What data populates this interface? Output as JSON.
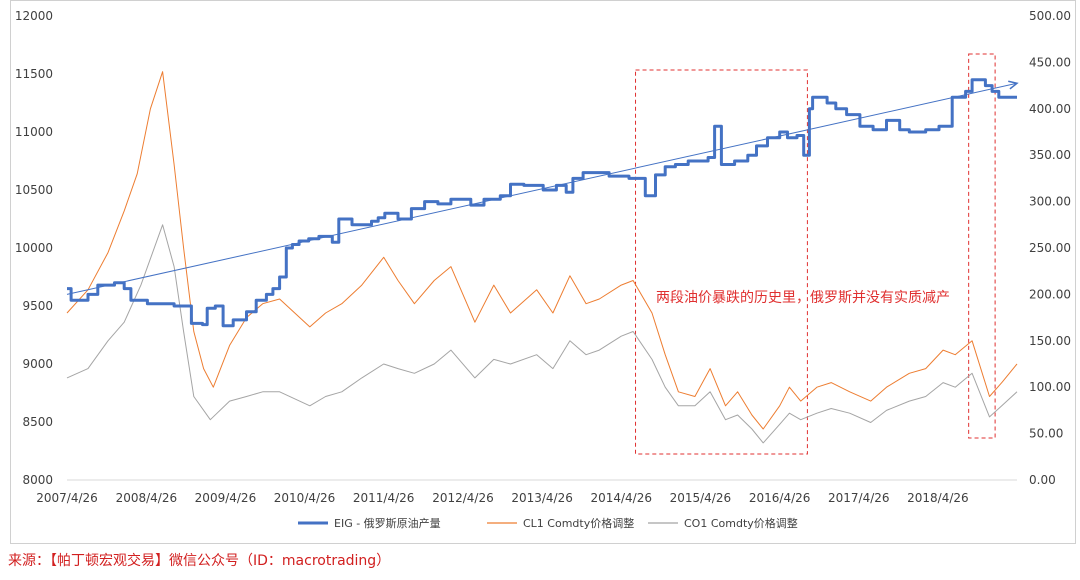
{
  "chart_data": {
    "type": "line",
    "y_left": {
      "min": 8000,
      "max": 12000,
      "ticks": [
        8000,
        8500,
        9000,
        9500,
        10000,
        10500,
        11000,
        11500,
        12000
      ]
    },
    "y_right": {
      "min": 0,
      "max": 500,
      "ticks": [
        "0.00",
        "50.00",
        "100.00",
        "150.00",
        "200.00",
        "250.00",
        "300.00",
        "350.00",
        "400.00",
        "450.00",
        "500.00"
      ]
    },
    "x_range": [
      "2007-04-26",
      "2019-04-26"
    ],
    "x_ticks": [
      "2007/4/26",
      "2008/4/26",
      "2009/4/26",
      "2010/4/26",
      "2011/4/26",
      "2012/4/26",
      "2013/4/26",
      "2014/4/26",
      "2015/4/26",
      "2016/4/26",
      "2017/4/26",
      "2018/4/26"
    ],
    "legend_position": "bottom",
    "series": [
      {
        "name": "EIG - 俄罗斯原油产量",
        "axis": "left",
        "color": "#4472c4",
        "step": true,
        "points": [
          [
            "2007-04-26",
            9650
          ],
          [
            "2007-05-15",
            9550
          ],
          [
            "2007-08-01",
            9600
          ],
          [
            "2007-09-15",
            9680
          ],
          [
            "2007-12-01",
            9700
          ],
          [
            "2008-01-15",
            9650
          ],
          [
            "2008-02-15",
            9550
          ],
          [
            "2008-05-01",
            9520
          ],
          [
            "2008-09-01",
            9500
          ],
          [
            "2008-11-20",
            9350
          ],
          [
            "2009-01-10",
            9340
          ],
          [
            "2009-02-01",
            9480
          ],
          [
            "2009-03-10",
            9500
          ],
          [
            "2009-04-15",
            9330
          ],
          [
            "2009-06-01",
            9380
          ],
          [
            "2009-08-01",
            9450
          ],
          [
            "2009-09-15",
            9550
          ],
          [
            "2009-11-01",
            9600
          ],
          [
            "2009-12-01",
            9650
          ],
          [
            "2010-01-01",
            9750
          ],
          [
            "2010-02-01",
            10000
          ],
          [
            "2010-03-01",
            10030
          ],
          [
            "2010-04-01",
            10060
          ],
          [
            "2010-05-15",
            10080
          ],
          [
            "2010-07-01",
            10100
          ],
          [
            "2010-09-01",
            10050
          ],
          [
            "2010-10-01",
            10250
          ],
          [
            "2010-12-01",
            10200
          ],
          [
            "2011-01-15",
            10200
          ],
          [
            "2011-03-01",
            10230
          ],
          [
            "2011-04-01",
            10260
          ],
          [
            "2011-05-01",
            10300
          ],
          [
            "2011-07-01",
            10250
          ],
          [
            "2011-09-01",
            10340
          ],
          [
            "2011-11-01",
            10400
          ],
          [
            "2012-01-01",
            10380
          ],
          [
            "2012-03-01",
            10420
          ],
          [
            "2012-06-01",
            10370
          ],
          [
            "2012-08-01",
            10420
          ],
          [
            "2012-10-15",
            10450
          ],
          [
            "2012-12-01",
            10550
          ],
          [
            "2013-02-01",
            10540
          ],
          [
            "2013-05-01",
            10500
          ],
          [
            "2013-07-01",
            10540
          ],
          [
            "2013-08-15",
            10480
          ],
          [
            "2013-09-15",
            10600
          ],
          [
            "2013-11-01",
            10650
          ],
          [
            "2014-01-01",
            10650
          ],
          [
            "2014-03-01",
            10620
          ],
          [
            "2014-06-01",
            10600
          ],
          [
            "2014-08-15",
            10450
          ],
          [
            "2014-10-01",
            10630
          ],
          [
            "2014-11-15",
            10700
          ],
          [
            "2015-01-01",
            10720
          ],
          [
            "2015-03-01",
            10750
          ],
          [
            "2015-06-01",
            10780
          ],
          [
            "2015-07-01",
            11050
          ],
          [
            "2015-08-01",
            10720
          ],
          [
            "2015-10-01",
            10750
          ],
          [
            "2015-12-01",
            10800
          ],
          [
            "2016-01-10",
            10880
          ],
          [
            "2016-03-01",
            10950
          ],
          [
            "2016-04-26",
            11000
          ],
          [
            "2016-06-01",
            10950
          ],
          [
            "2016-07-15",
            10970
          ],
          [
            "2016-08-15",
            10800
          ],
          [
            "2016-09-10",
            11200
          ],
          [
            "2016-09-25",
            11300
          ],
          [
            "2016-12-01",
            11250
          ],
          [
            "2017-01-10",
            11200
          ],
          [
            "2017-03-01",
            11150
          ],
          [
            "2017-05-01",
            11050
          ],
          [
            "2017-07-01",
            11020
          ],
          [
            "2017-09-01",
            11100
          ],
          [
            "2017-11-01",
            11020
          ],
          [
            "2017-12-15",
            11000
          ],
          [
            "2018-03-01",
            11020
          ],
          [
            "2018-05-01",
            11050
          ],
          [
            "2018-07-01",
            11300
          ],
          [
            "2018-09-01",
            11350
          ],
          [
            "2018-10-01",
            11450
          ],
          [
            "2018-12-01",
            11400
          ],
          [
            "2019-01-01",
            11350
          ],
          [
            "2019-02-01",
            11300
          ],
          [
            "2019-04-26",
            11300
          ]
        ]
      },
      {
        "name": "CL1 Comdty价格调整",
        "axis": "right",
        "color": "#ed7d31",
        "points": [
          [
            "2007-04-26",
            180
          ],
          [
            "2007-08-01",
            205
          ],
          [
            "2007-11-01",
            245
          ],
          [
            "2008-01-15",
            290
          ],
          [
            "2008-03-15",
            330
          ],
          [
            "2008-05-15",
            400
          ],
          [
            "2008-07-10",
            440
          ],
          [
            "2008-09-01",
            340
          ],
          [
            "2008-10-15",
            250
          ],
          [
            "2008-12-01",
            160
          ],
          [
            "2009-01-15",
            120
          ],
          [
            "2009-03-01",
            100
          ],
          [
            "2009-05-15",
            145
          ],
          [
            "2009-08-01",
            175
          ],
          [
            "2009-10-15",
            190
          ],
          [
            "2010-01-01",
            195
          ],
          [
            "2010-05-20",
            165
          ],
          [
            "2010-08-01",
            180
          ],
          [
            "2010-10-15",
            190
          ],
          [
            "2011-01-15",
            210
          ],
          [
            "2011-04-26",
            240
          ],
          [
            "2011-07-01",
            215
          ],
          [
            "2011-09-15",
            190
          ],
          [
            "2011-12-15",
            215
          ],
          [
            "2012-03-01",
            230
          ],
          [
            "2012-06-20",
            170
          ],
          [
            "2012-09-15",
            210
          ],
          [
            "2012-12-01",
            180
          ],
          [
            "2013-04-01",
            205
          ],
          [
            "2013-06-15",
            180
          ],
          [
            "2013-09-01",
            220
          ],
          [
            "2013-11-15",
            190
          ],
          [
            "2014-01-15",
            195
          ],
          [
            "2014-04-26",
            210
          ],
          [
            "2014-06-20",
            215
          ],
          [
            "2014-09-15",
            180
          ],
          [
            "2014-11-15",
            135
          ],
          [
            "2015-01-15",
            95
          ],
          [
            "2015-04-01",
            90
          ],
          [
            "2015-06-10",
            120
          ],
          [
            "2015-08-20",
            80
          ],
          [
            "2015-10-15",
            95
          ],
          [
            "2015-12-20",
            70
          ],
          [
            "2016-02-10",
            55
          ],
          [
            "2016-04-26",
            80
          ],
          [
            "2016-06-10",
            100
          ],
          [
            "2016-08-01",
            85
          ],
          [
            "2016-10-15",
            100
          ],
          [
            "2016-12-20",
            105
          ],
          [
            "2017-03-15",
            95
          ],
          [
            "2017-06-20",
            85
          ],
          [
            "2017-09-01",
            100
          ],
          [
            "2017-12-15",
            115
          ],
          [
            "2018-03-01",
            120
          ],
          [
            "2018-05-20",
            140
          ],
          [
            "2018-07-15",
            135
          ],
          [
            "2018-10-01",
            150
          ],
          [
            "2018-12-20",
            90
          ],
          [
            "2019-02-15",
            105
          ],
          [
            "2019-04-26",
            125
          ]
        ]
      },
      {
        "name": "CO1 Comdty价格调整",
        "axis": "right",
        "color": "#a5a5a5",
        "points": [
          [
            "2007-04-26",
            110
          ],
          [
            "2007-08-01",
            120
          ],
          [
            "2007-11-01",
            150
          ],
          [
            "2008-01-15",
            170
          ],
          [
            "2008-04-01",
            210
          ],
          [
            "2008-07-10",
            275
          ],
          [
            "2008-09-01",
            230
          ],
          [
            "2008-10-15",
            160
          ],
          [
            "2008-12-01",
            90
          ],
          [
            "2009-02-15",
            65
          ],
          [
            "2009-05-15",
            85
          ],
          [
            "2009-08-01",
            90
          ],
          [
            "2009-10-15",
            95
          ],
          [
            "2010-01-01",
            95
          ],
          [
            "2010-05-20",
            80
          ],
          [
            "2010-08-01",
            90
          ],
          [
            "2010-10-15",
            95
          ],
          [
            "2011-01-15",
            110
          ],
          [
            "2011-04-26",
            125
          ],
          [
            "2011-07-01",
            120
          ],
          [
            "2011-09-15",
            115
          ],
          [
            "2011-12-15",
            125
          ],
          [
            "2012-03-01",
            140
          ],
          [
            "2012-06-20",
            110
          ],
          [
            "2012-09-15",
            130
          ],
          [
            "2012-12-01",
            125
          ],
          [
            "2013-04-01",
            135
          ],
          [
            "2013-06-15",
            120
          ],
          [
            "2013-09-01",
            150
          ],
          [
            "2013-11-15",
            135
          ],
          [
            "2014-01-15",
            140
          ],
          [
            "2014-04-26",
            155
          ],
          [
            "2014-06-20",
            160
          ],
          [
            "2014-09-15",
            130
          ],
          [
            "2014-11-15",
            100
          ],
          [
            "2015-01-15",
            80
          ],
          [
            "2015-04-01",
            80
          ],
          [
            "2015-06-10",
            95
          ],
          [
            "2015-08-20",
            65
          ],
          [
            "2015-10-15",
            70
          ],
          [
            "2015-12-20",
            55
          ],
          [
            "2016-02-10",
            40
          ],
          [
            "2016-04-26",
            60
          ],
          [
            "2016-06-10",
            72
          ],
          [
            "2016-08-01",
            65
          ],
          [
            "2016-10-15",
            72
          ],
          [
            "2016-12-20",
            77
          ],
          [
            "2017-03-15",
            72
          ],
          [
            "2017-06-20",
            62
          ],
          [
            "2017-09-01",
            75
          ],
          [
            "2017-12-15",
            85
          ],
          [
            "2018-03-01",
            90
          ],
          [
            "2018-05-20",
            105
          ],
          [
            "2018-07-15",
            100
          ],
          [
            "2018-10-01",
            115
          ],
          [
            "2018-12-20",
            68
          ],
          [
            "2019-02-15",
            80
          ],
          [
            "2019-04-26",
            95
          ]
        ]
      }
    ],
    "trendline": {
      "axis": "left",
      "color": "#4472c4",
      "from": [
        "2007-04-26",
        9600
      ],
      "to": [
        "2019-04-26",
        11420
      ]
    },
    "annotations": [
      {
        "text": "两段油价暴跌的历史里，俄罗斯并没有实质减产",
        "color": "#e03030"
      }
    ],
    "highlight_boxes": [
      {
        "from": "2014-07-01",
        "to": "2016-09-01",
        "style": "dashed",
        "color": "#e03030"
      },
      {
        "from": "2018-09-15",
        "to": "2019-01-15",
        "style": "dashed",
        "color": "#e03030"
      }
    ]
  },
  "source_note": "来源：【帕丁顿宏观交易】微信公众号（ID：macrotrading）"
}
